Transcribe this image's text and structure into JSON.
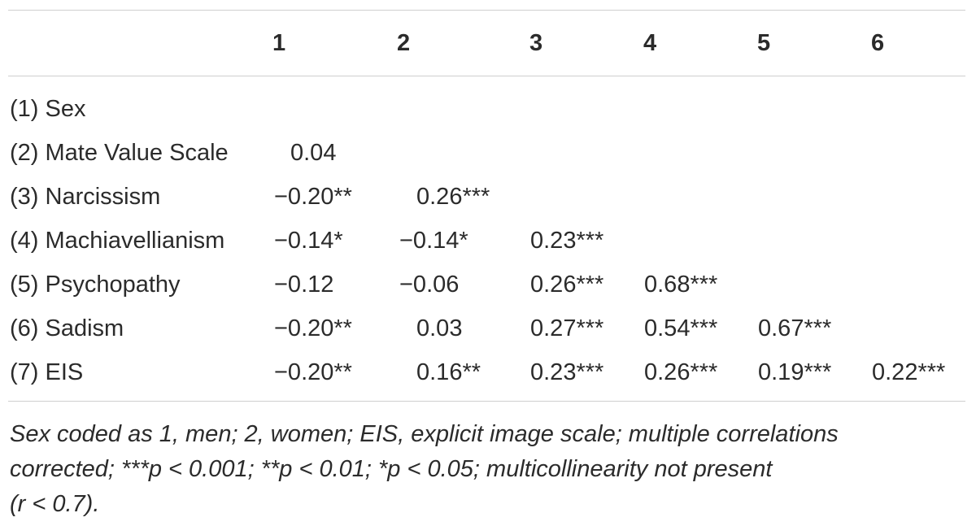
{
  "table": {
    "columns": [
      "1",
      "2",
      "3",
      "4",
      "5",
      "6"
    ],
    "rows": [
      {
        "label": "(1) Sex",
        "cells": [
          "",
          "",
          "",
          "",
          "",
          ""
        ]
      },
      {
        "label": "(2) Mate Value Scale",
        "cells": [
          "0.04",
          "",
          "",
          "",
          "",
          ""
        ]
      },
      {
        "label": "(3) Narcissism",
        "cells": [
          "−0.20**",
          "0.26***",
          "",
          "",
          "",
          ""
        ]
      },
      {
        "label": "(4) Machiavellianism",
        "cells": [
          "−0.14*",
          "−0.14*",
          "0.23***",
          "",
          "",
          ""
        ]
      },
      {
        "label": "(5) Psychopathy",
        "cells": [
          "−0.12",
          "−0.06",
          "0.26***",
          "0.68***",
          "",
          ""
        ]
      },
      {
        "label": "(6) Sadism",
        "cells": [
          "−0.20**",
          "0.03",
          "0.27***",
          "0.54***",
          "0.67***",
          ""
        ]
      },
      {
        "label": "(7) EIS",
        "cells": [
          "−0.20**",
          "0.16**",
          "0.23***",
          "0.26***",
          "0.19***",
          "0.22***"
        ]
      }
    ],
    "note_line1": "Sex coded as 1, men; 2, women; EIS, explicit image scale; multiple correlations",
    "note_line2": "corrected; ***p < 0.001; **p < 0.01; *p < 0.05; multicollinearity not present",
    "note_line3": "(r < 0.7)."
  }
}
